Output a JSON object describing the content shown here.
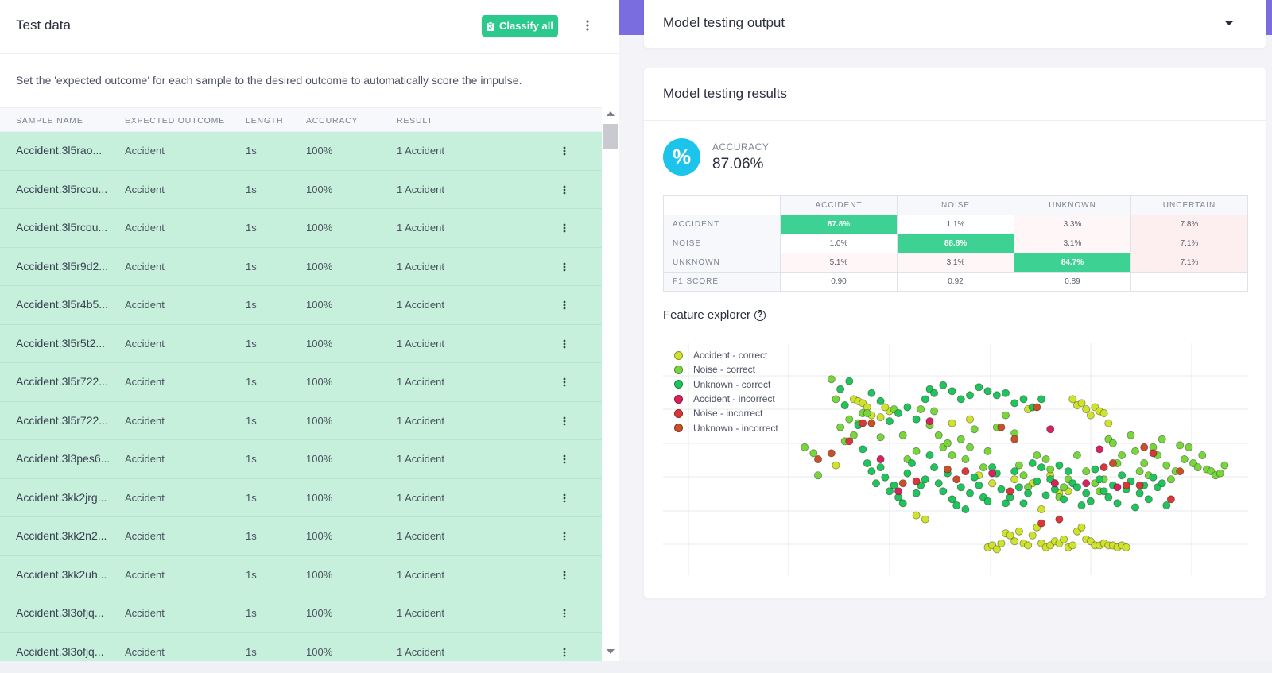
{
  "left": {
    "title": "Test data",
    "classify_label": "Classify all",
    "description": "Set the 'expected outcome' for each sample to the desired outcome to automatically score the impulse.",
    "columns": [
      "SAMPLE NAME",
      "EXPECTED OUTCOME",
      "LENGTH",
      "ACCURACY",
      "RESULT"
    ],
    "rows": [
      {
        "name": "Accident.3l5rao...",
        "expected": "Accident",
        "length": "1s",
        "accuracy": "100%",
        "result": "1 Accident"
      },
      {
        "name": "Accident.3l5rcou...",
        "expected": "Accident",
        "length": "1s",
        "accuracy": "100%",
        "result": "1 Accident"
      },
      {
        "name": "Accident.3l5rcou...",
        "expected": "Accident",
        "length": "1s",
        "accuracy": "100%",
        "result": "1 Accident"
      },
      {
        "name": "Accident.3l5r9d2...",
        "expected": "Accident",
        "length": "1s",
        "accuracy": "100%",
        "result": "1 Accident"
      },
      {
        "name": "Accident.3l5r4b5...",
        "expected": "Accident",
        "length": "1s",
        "accuracy": "100%",
        "result": "1 Accident"
      },
      {
        "name": "Accident.3l5r5t2...",
        "expected": "Accident",
        "length": "1s",
        "accuracy": "100%",
        "result": "1 Accident"
      },
      {
        "name": "Accident.3l5r722...",
        "expected": "Accident",
        "length": "1s",
        "accuracy": "100%",
        "result": "1 Accident"
      },
      {
        "name": "Accident.3l5r722...",
        "expected": "Accident",
        "length": "1s",
        "accuracy": "100%",
        "result": "1 Accident"
      },
      {
        "name": "Accident.3l3pes6...",
        "expected": "Accident",
        "length": "1s",
        "accuracy": "100%",
        "result": "1 Accident"
      },
      {
        "name": "Accident.3kk2jrg...",
        "expected": "Accident",
        "length": "1s",
        "accuracy": "100%",
        "result": "1 Accident"
      },
      {
        "name": "Accident.3kk2n2...",
        "expected": "Accident",
        "length": "1s",
        "accuracy": "100%",
        "result": "1 Accident"
      },
      {
        "name": "Accident.3kk2uh...",
        "expected": "Accident",
        "length": "1s",
        "accuracy": "100%",
        "result": "1 Accident"
      },
      {
        "name": "Accident.3l3ofjq...",
        "expected": "Accident",
        "length": "1s",
        "accuracy": "100%",
        "result": "1 Accident"
      },
      {
        "name": "Accident.3l3ofjq...",
        "expected": "Accident",
        "length": "1s",
        "accuracy": "100%",
        "result": "1 Accident"
      }
    ]
  },
  "output": {
    "title": "Model testing output"
  },
  "results": {
    "title": "Model testing results",
    "icon_text": "%",
    "accuracy_label": "ACCURACY",
    "accuracy_value": "87.06%",
    "matrix": {
      "columns": [
        "ACCIDENT",
        "NOISE",
        "UNKNOWN",
        "UNCERTAIN"
      ],
      "rows": [
        {
          "label": "ACCIDENT",
          "cells": [
            "87.8%",
            "1.1%",
            "3.3%",
            "7.8%"
          ]
        },
        {
          "label": "NOISE",
          "cells": [
            "1.0%",
            "88.8%",
            "3.1%",
            "7.1%"
          ]
        },
        {
          "label": "UNKNOWN",
          "cells": [
            "5.1%",
            "3.1%",
            "84.7%",
            "7.1%"
          ]
        },
        {
          "label": "F1 SCORE",
          "cells": [
            "0.90",
            "0.92",
            "0.89",
            ""
          ]
        }
      ]
    },
    "feature_explorer_title": "Feature explorer",
    "help_icon_text": "?"
  },
  "colors": {
    "accent_green": "#2bca8c",
    "row_green": "#c6f0dc",
    "cyan": "#1cc3ea",
    "purple": "#7a6de0"
  },
  "chart_data": {
    "type": "scatter",
    "title": "Feature explorer",
    "xlim": [
      0,
      100
    ],
    "ylim": [
      0,
      100
    ],
    "grid": true,
    "legend": "top-left",
    "legend_entries": [
      {
        "name": "Accident - correct",
        "color": "#cfe22e"
      },
      {
        "name": "Noise - correct",
        "color": "#78d63c"
      },
      {
        "name": "Unknown - correct",
        "color": "#21c35c"
      },
      {
        "name": "Accident - incorrect",
        "color": "#d6245a"
      },
      {
        "name": "Noise - incorrect",
        "color": "#d9383a"
      },
      {
        "name": "Unknown - incorrect",
        "color": "#c8502a"
      }
    ],
    "series": [
      {
        "name": "Accident - correct",
        "points": [
          [
            16,
            80
          ],
          [
            17,
            79
          ],
          [
            18,
            78
          ],
          [
            19,
            76
          ],
          [
            20,
            72
          ],
          [
            22,
            71
          ],
          [
            24,
            74
          ],
          [
            23,
            76
          ],
          [
            46,
            6
          ],
          [
            47,
            7
          ],
          [
            48,
            5
          ],
          [
            49,
            8
          ],
          [
            50,
            13
          ],
          [
            51,
            12
          ],
          [
            52,
            9
          ],
          [
            53,
            14
          ],
          [
            54,
            8
          ],
          [
            55,
            7
          ],
          [
            56,
            12
          ],
          [
            57,
            16
          ],
          [
            58,
            8
          ],
          [
            59,
            6
          ],
          [
            60,
            7
          ],
          [
            61,
            9
          ],
          [
            62,
            8
          ],
          [
            63,
            10
          ],
          [
            64,
            6
          ],
          [
            65,
            7
          ],
          [
            66,
            14
          ],
          [
            67,
            16
          ],
          [
            68,
            10
          ],
          [
            69,
            9
          ],
          [
            70,
            7
          ],
          [
            71,
            7
          ],
          [
            72,
            8
          ],
          [
            73,
            7
          ],
          [
            74,
            7
          ],
          [
            75,
            6
          ],
          [
            76,
            7
          ],
          [
            77,
            6
          ],
          [
            65,
            80
          ],
          [
            66,
            77
          ],
          [
            67,
            78
          ],
          [
            68,
            75
          ],
          [
            69,
            72
          ],
          [
            70,
            76
          ],
          [
            71,
            74
          ],
          [
            72,
            73
          ],
          [
            73,
            68
          ],
          [
            44,
            42
          ],
          [
            47,
            38
          ],
          [
            52,
            40
          ],
          [
            56,
            38
          ],
          [
            60,
            42
          ],
          [
            62,
            33
          ],
          [
            64,
            34
          ],
          [
            30,
            22
          ],
          [
            32,
            20
          ],
          [
            58,
            25
          ],
          [
            38,
            68
          ],
          [
            42,
            70
          ],
          [
            55,
            75
          ],
          [
            12,
            47
          ]
        ]
      },
      {
        "name": "Noise - correct",
        "points": [
          [
            5,
            56
          ],
          [
            7,
            53
          ],
          [
            8,
            42
          ],
          [
            11,
            90
          ],
          [
            12,
            80
          ],
          [
            13,
            66
          ],
          [
            14,
            59
          ],
          [
            15,
            70
          ],
          [
            16,
            62
          ],
          [
            17,
            68
          ],
          [
            18,
            73
          ],
          [
            19,
            73
          ],
          [
            22,
            61
          ],
          [
            25,
            75
          ],
          [
            27,
            62
          ],
          [
            28,
            50
          ],
          [
            30,
            54
          ],
          [
            31,
            75
          ],
          [
            33,
            67
          ],
          [
            34,
            74
          ],
          [
            35,
            62
          ],
          [
            36,
            56
          ],
          [
            37,
            58
          ],
          [
            38,
            52
          ],
          [
            40,
            60
          ],
          [
            41,
            50
          ],
          [
            42,
            56
          ],
          [
            43,
            65
          ],
          [
            45,
            46
          ],
          [
            46,
            54
          ],
          [
            48,
            66
          ],
          [
            50,
            72
          ],
          [
            52,
            63
          ],
          [
            53,
            47
          ],
          [
            54,
            42
          ],
          [
            55,
            36
          ],
          [
            57,
            52
          ],
          [
            59,
            50
          ],
          [
            60,
            45
          ],
          [
            61,
            38
          ],
          [
            62,
            31
          ],
          [
            63,
            36
          ],
          [
            64,
            40
          ],
          [
            66,
            52
          ],
          [
            68,
            44
          ],
          [
            70,
            38
          ],
          [
            71,
            34
          ],
          [
            72,
            40
          ],
          [
            73,
            60
          ],
          [
            74,
            58
          ],
          [
            75,
            48
          ],
          [
            76,
            52
          ],
          [
            78,
            62
          ],
          [
            79,
            54
          ],
          [
            80,
            44
          ],
          [
            81,
            48
          ],
          [
            82,
            42
          ],
          [
            83,
            56
          ],
          [
            84,
            52
          ],
          [
            85,
            60
          ],
          [
            86,
            47
          ],
          [
            87,
            40
          ],
          [
            88,
            44
          ],
          [
            89,
            57
          ],
          [
            90,
            50
          ],
          [
            91,
            56
          ],
          [
            92,
            48
          ],
          [
            93,
            46
          ],
          [
            94,
            52
          ],
          [
            95,
            45
          ],
          [
            96,
            44
          ],
          [
            97,
            42
          ],
          [
            98,
            43
          ],
          [
            99,
            47
          ]
        ]
      },
      {
        "name": "Unknown - correct",
        "points": [
          [
            13,
            85
          ],
          [
            15,
            89
          ],
          [
            14,
            77
          ],
          [
            17,
            67
          ],
          [
            18,
            55
          ],
          [
            19,
            48
          ],
          [
            20,
            44
          ],
          [
            21,
            38
          ],
          [
            22,
            46
          ],
          [
            23,
            41
          ],
          [
            24,
            34
          ],
          [
            25,
            37
          ],
          [
            26,
            31
          ],
          [
            27,
            28
          ],
          [
            28,
            43
          ],
          [
            29,
            48
          ],
          [
            30,
            33
          ],
          [
            31,
            37
          ],
          [
            32,
            40
          ],
          [
            33,
            52
          ],
          [
            34,
            46
          ],
          [
            35,
            38
          ],
          [
            36,
            34
          ],
          [
            37,
            43
          ],
          [
            38,
            30
          ],
          [
            39,
            27
          ],
          [
            40,
            36
          ],
          [
            41,
            25
          ],
          [
            42,
            33
          ],
          [
            43,
            41
          ],
          [
            44,
            37
          ],
          [
            45,
            31
          ],
          [
            46,
            29
          ],
          [
            47,
            46
          ],
          [
            48,
            43
          ],
          [
            49,
            35
          ],
          [
            50,
            28
          ],
          [
            51,
            31
          ],
          [
            52,
            44
          ],
          [
            53,
            36
          ],
          [
            54,
            28
          ],
          [
            55,
            33
          ],
          [
            56,
            48
          ],
          [
            57,
            39
          ],
          [
            58,
            46
          ],
          [
            59,
            32
          ],
          [
            60,
            40
          ],
          [
            61,
            35
          ],
          [
            62,
            47
          ],
          [
            63,
            30
          ],
          [
            64,
            44
          ],
          [
            65,
            38
          ],
          [
            66,
            36
          ],
          [
            67,
            27
          ],
          [
            68,
            33
          ],
          [
            69,
            29
          ],
          [
            70,
            45
          ],
          [
            71,
            40
          ],
          [
            72,
            34
          ],
          [
            73,
            31
          ],
          [
            74,
            37
          ],
          [
            75,
            28
          ],
          [
            76,
            42
          ],
          [
            77,
            35
          ],
          [
            78,
            39
          ],
          [
            79,
            26
          ],
          [
            80,
            33
          ],
          [
            81,
            37
          ],
          [
            82,
            30
          ],
          [
            83,
            41
          ],
          [
            84,
            36
          ],
          [
            85,
            38
          ],
          [
            86,
            27
          ],
          [
            33,
            85
          ],
          [
            34,
            83
          ],
          [
            36,
            87
          ],
          [
            38,
            84
          ],
          [
            40,
            80
          ],
          [
            42,
            82
          ],
          [
            44,
            86
          ],
          [
            46,
            84
          ],
          [
            48,
            82
          ],
          [
            50,
            83
          ],
          [
            52,
            78
          ],
          [
            54,
            80
          ],
          [
            56,
            76
          ],
          [
            58,
            80
          ],
          [
            26,
            73
          ],
          [
            28,
            76
          ],
          [
            30,
            70
          ],
          [
            32,
            80
          ],
          [
            24,
            69
          ],
          [
            22,
            79
          ],
          [
            20,
            83
          ]
        ]
      },
      {
        "name": "Accident - incorrect",
        "points": [
          [
            22,
            50
          ],
          [
            33,
            69
          ],
          [
            47,
            43
          ],
          [
            26,
            34
          ],
          [
            60,
            65
          ],
          [
            71,
            55
          ],
          [
            68,
            38
          ],
          [
            75,
            36
          ],
          [
            61,
            38
          ]
        ]
      },
      {
        "name": "Noise - incorrect",
        "points": [
          [
            18,
            68
          ],
          [
            15,
            59
          ],
          [
            30,
            39
          ],
          [
            41,
            44
          ],
          [
            51,
            34
          ],
          [
            58,
            18
          ],
          [
            62,
            20
          ],
          [
            77,
            37
          ],
          [
            80,
            37
          ],
          [
            72,
            46
          ],
          [
            87,
            30
          ],
          [
            83,
            53
          ]
        ]
      },
      {
        "name": "Unknown - incorrect",
        "points": [
          [
            8,
            50
          ],
          [
            11,
            53
          ],
          [
            20,
            68
          ],
          [
            27,
            38
          ],
          [
            37,
            45
          ],
          [
            39,
            40
          ],
          [
            49,
            66
          ],
          [
            52,
            60
          ],
          [
            57,
            76
          ],
          [
            74,
            48
          ],
          [
            81,
            56
          ],
          [
            89,
            44
          ]
        ]
      }
    ]
  }
}
